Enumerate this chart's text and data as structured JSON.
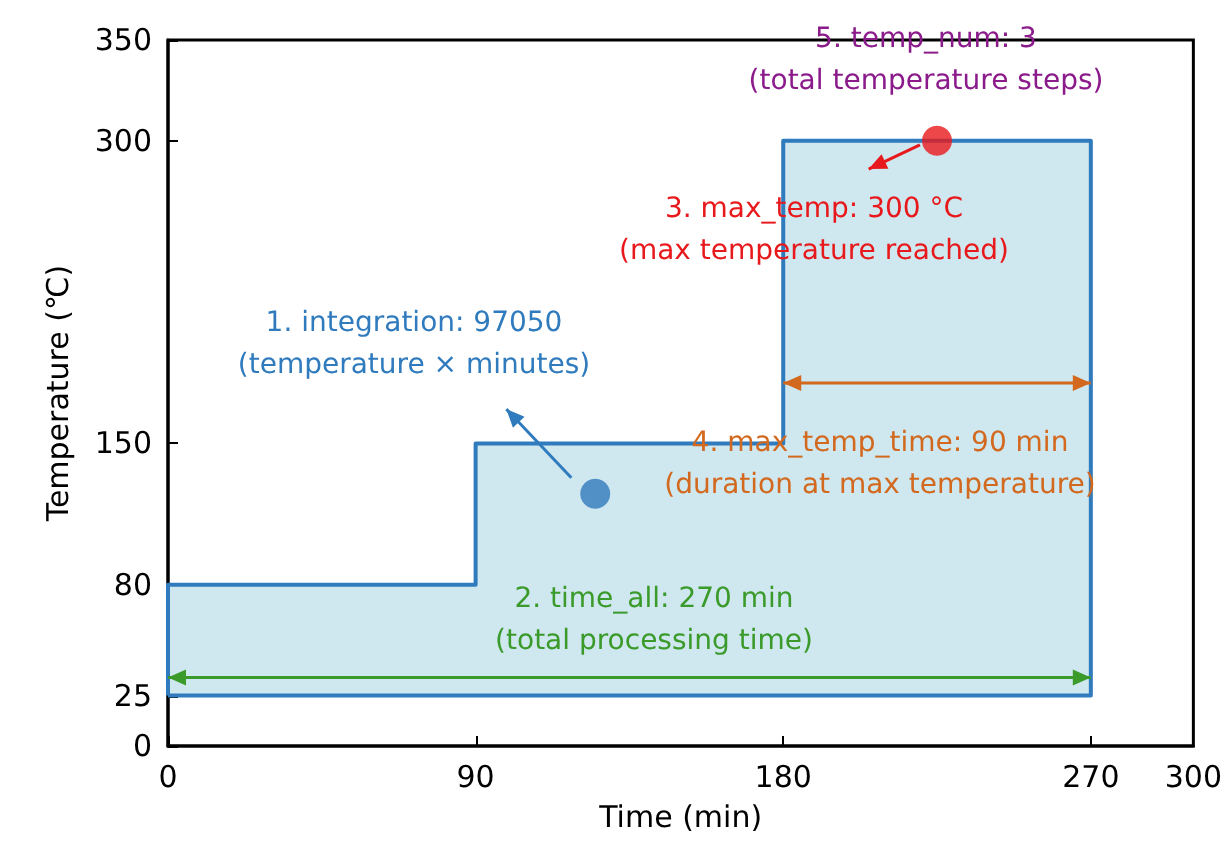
{
  "chart_data": {
    "type": "area",
    "xlabel": "Time (min)",
    "ylabel": "Temperature (℃)",
    "series": [
      {
        "color": "#2f7bbd",
        "x": [
          0,
          0,
          90,
          90,
          180,
          180,
          270,
          270,
          0
        ],
        "values": [
          25,
          80,
          80,
          150,
          150,
          300,
          300,
          25,
          25
        ]
      },
      {
        "type": "scatter",
        "marker": "circle",
        "color": "#2f7bbd",
        "x": [
          125
        ],
        "values": [
          125
        ]
      },
      {
        "type": "scatter",
        "marker": "circle",
        "color": "#e8191c",
        "x": [
          225
        ],
        "values": [
          300
        ]
      }
    ],
    "xlim": [
      0,
      300
    ],
    "xticks": [
      0,
      90,
      180,
      270,
      300
    ],
    "ylim": [
      0,
      350
    ],
    "yticks": [
      0,
      25,
      80,
      150,
      300,
      350
    ],
    "annotations": [
      "1. integration: 97050\n(temperature × minutes)",
      "2. time_all: 270 min\n(total processing time)",
      "3. max_temp: 300 °C\n(max temperature reached)",
      "4. max_temp_time: 90 min\n(duration at max temperature)",
      "5. temp_num: 3\n(total temperature steps)"
    ]
  }
}
